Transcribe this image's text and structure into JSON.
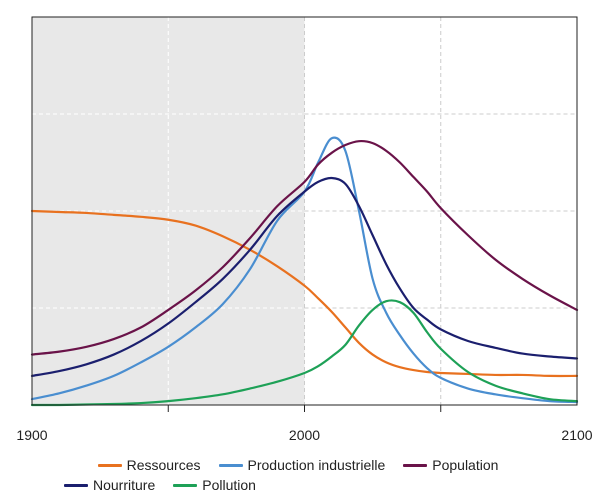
{
  "chart_data": {
    "type": "line",
    "title": "",
    "xlabel": "",
    "ylabel": "",
    "xlim": [
      1900,
      2100
    ],
    "ylim": [
      0,
      4
    ],
    "x_ticks": [
      1900,
      2000,
      2100
    ],
    "x_tick_labels": [
      "1900",
      "2000",
      "2100"
    ],
    "grid": true,
    "shaded_region": {
      "x_from": 1900,
      "x_to": 2000,
      "color": "#e8e8e8"
    },
    "legend_position": "bottom",
    "x": [
      1900,
      1910,
      1920,
      1930,
      1940,
      1950,
      1960,
      1970,
      1980,
      1990,
      2000,
      2005,
      2010,
      2015,
      2020,
      2025,
      2030,
      2035,
      2040,
      2045,
      2050,
      2060,
      2070,
      2080,
      2090,
      2100
    ],
    "series": [
      {
        "name": "Ressources",
        "color": "#e8711f",
        "values": [
          2.0,
          1.99,
          1.98,
          1.96,
          1.94,
          1.91,
          1.85,
          1.74,
          1.6,
          1.43,
          1.23,
          1.1,
          0.96,
          0.8,
          0.64,
          0.52,
          0.44,
          0.39,
          0.36,
          0.34,
          0.33,
          0.32,
          0.31,
          0.31,
          0.3,
          0.3
        ]
      },
      {
        "name": "Production industrielle",
        "color": "#4a8ed0",
        "values": [
          0.06,
          0.12,
          0.2,
          0.3,
          0.44,
          0.6,
          0.8,
          1.04,
          1.4,
          1.9,
          2.2,
          2.5,
          2.75,
          2.62,
          2.0,
          1.3,
          0.95,
          0.72,
          0.53,
          0.38,
          0.28,
          0.17,
          0.11,
          0.07,
          0.04,
          0.03
        ]
      },
      {
        "name": "Population",
        "color": "#6a1349",
        "values": [
          0.52,
          0.55,
          0.6,
          0.68,
          0.8,
          0.98,
          1.18,
          1.42,
          1.72,
          2.05,
          2.3,
          2.48,
          2.6,
          2.68,
          2.72,
          2.7,
          2.62,
          2.5,
          2.35,
          2.2,
          2.03,
          1.75,
          1.5,
          1.3,
          1.13,
          0.98
        ]
      },
      {
        "name": "Nourriture",
        "color": "#1b1f6e",
        "values": [
          0.3,
          0.35,
          0.42,
          0.52,
          0.66,
          0.84,
          1.06,
          1.3,
          1.6,
          1.95,
          2.2,
          2.3,
          2.34,
          2.28,
          2.05,
          1.75,
          1.45,
          1.2,
          1.0,
          0.88,
          0.78,
          0.66,
          0.59,
          0.53,
          0.5,
          0.48
        ]
      },
      {
        "name": "Pollution",
        "color": "#1ea157",
        "values": [
          0.0,
          0.0,
          0.005,
          0.01,
          0.02,
          0.04,
          0.07,
          0.11,
          0.17,
          0.24,
          0.33,
          0.4,
          0.5,
          0.62,
          0.82,
          0.98,
          1.07,
          1.06,
          0.95,
          0.75,
          0.58,
          0.34,
          0.2,
          0.12,
          0.06,
          0.04
        ]
      }
    ]
  }
}
